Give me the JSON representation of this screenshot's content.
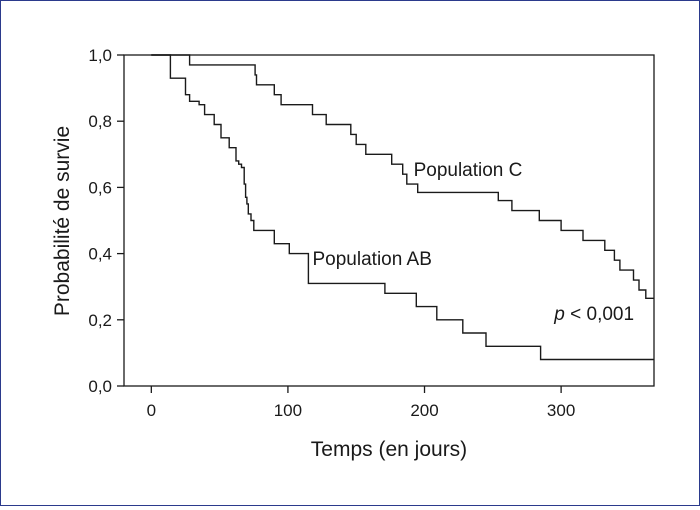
{
  "chart_data": {
    "type": "line",
    "subtype": "kaplan-meier step",
    "xlabel": "Temps (en jours)",
    "ylabel": "Probabilité de survie",
    "xlim": [
      -20,
      368
    ],
    "ylim": [
      0,
      1
    ],
    "x_ticks": [
      0,
      100,
      200,
      300
    ],
    "y_ticks": [
      0,
      0.2,
      0.4,
      0.6,
      0.8,
      1.0
    ],
    "x_tick_labels": [
      "0",
      "100",
      "200",
      "300"
    ],
    "y_tick_labels": [
      "0,0",
      "0,2",
      "0,4",
      "0,6",
      "0,8",
      "1,0"
    ],
    "grid": false,
    "legend": "none (direct labels)",
    "series": [
      {
        "name": "Population C",
        "color": "#1a1a1a",
        "points": [
          [
            0,
            1.0
          ],
          [
            28,
            0.97
          ],
          [
            76,
            0.94
          ],
          [
            77,
            0.91
          ],
          [
            90,
            0.88
          ],
          [
            95,
            0.85
          ],
          [
            118,
            0.82
          ],
          [
            128,
            0.79
          ],
          [
            146,
            0.76
          ],
          [
            150,
            0.73
          ],
          [
            157,
            0.7
          ],
          [
            176,
            0.67
          ],
          [
            184,
            0.64
          ],
          [
            187,
            0.61
          ],
          [
            195,
            0.585
          ],
          [
            254,
            0.56
          ],
          [
            264,
            0.53
          ],
          [
            284,
            0.5
          ],
          [
            300,
            0.47
          ],
          [
            316,
            0.44
          ],
          [
            332,
            0.41
          ],
          [
            339,
            0.38
          ],
          [
            343,
            0.35
          ],
          [
            353,
            0.32
          ],
          [
            357,
            0.29
          ],
          [
            362,
            0.265
          ],
          [
            368,
            0.265
          ]
        ]
      },
      {
        "name": "Population AB",
        "color": "#1a1a1a",
        "points": [
          [
            0,
            1.0
          ],
          [
            14,
            0.93
          ],
          [
            25,
            0.88
          ],
          [
            28,
            0.86
          ],
          [
            35,
            0.85
          ],
          [
            39,
            0.82
          ],
          [
            46,
            0.79
          ],
          [
            51,
            0.75
          ],
          [
            57,
            0.72
          ],
          [
            62,
            0.68
          ],
          [
            64,
            0.67
          ],
          [
            66,
            0.66
          ],
          [
            68,
            0.61
          ],
          [
            69,
            0.57
          ],
          [
            70,
            0.55
          ],
          [
            71,
            0.52
          ],
          [
            73,
            0.5
          ],
          [
            75,
            0.47
          ],
          [
            90,
            0.43
          ],
          [
            101,
            0.4
          ],
          [
            115,
            0.31
          ],
          [
            171,
            0.28
          ],
          [
            194,
            0.24
          ],
          [
            209,
            0.2
          ],
          [
            228,
            0.16
          ],
          [
            245,
            0.12
          ],
          [
            285,
            0.08
          ],
          [
            368,
            0.08
          ]
        ]
      }
    ],
    "annotations": [
      {
        "text": "Population C",
        "x": 192,
        "y": 0.635
      },
      {
        "text": "Population AB",
        "x": 118,
        "y": 0.365
      },
      {
        "text_italic": "p",
        "text": " < 0,001",
        "x": 295,
        "y": 0.2
      }
    ]
  }
}
